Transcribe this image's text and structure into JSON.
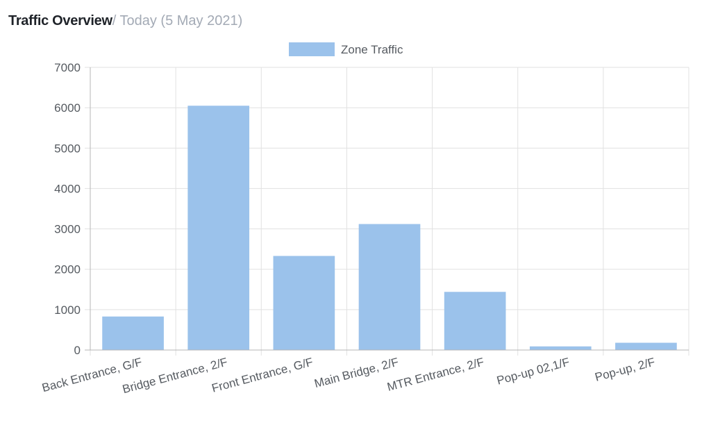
{
  "header": {
    "title": "Traffic Overview",
    "subtitle": "/ Today (5 May 2021)"
  },
  "colors": {
    "bar": "#9bc2eb",
    "grid": "#e1e1e1",
    "axis": "#b5b5b5"
  },
  "chart_data": {
    "type": "bar",
    "categories": [
      "Back Entrance, G/F",
      "Bridge Entrance, 2/F",
      "Front Entrance, G/F",
      "Main Bridge, 2/F",
      "MTR Entrance, 2/F",
      "Pop-up 02,1/F",
      "Pop-up, 2/F"
    ],
    "series": [
      {
        "name": "Zone Traffic",
        "values": [
          830,
          6050,
          2330,
          3120,
          1440,
          90,
          180
        ]
      }
    ],
    "ylim": [
      0,
      7000
    ],
    "yticks": [
      "0",
      "1000",
      "2000",
      "3000",
      "4000",
      "5000",
      "6000",
      "7000"
    ],
    "grid": true,
    "legend": "top-center"
  }
}
